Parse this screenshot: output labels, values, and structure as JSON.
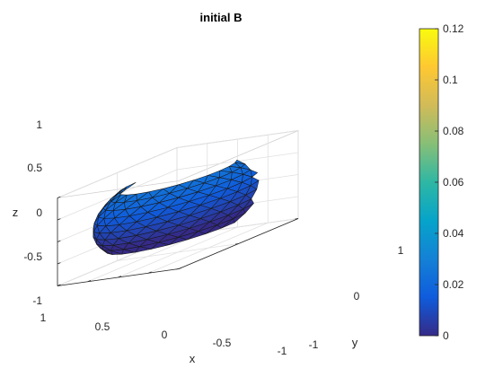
{
  "chart_data": {
    "type": "surface3d",
    "title": "initial B",
    "xlabel": "x",
    "ylabel": "y",
    "zlabel": "z",
    "xlim": [
      -1,
      1
    ],
    "ylim": [
      -1,
      1
    ],
    "zlim": [
      -1,
      1
    ],
    "xticks": [
      "1",
      "0.5",
      "0",
      "-0.5",
      "-1"
    ],
    "yticks": [
      "-1",
      "0",
      "1"
    ],
    "zticks": [
      "1",
      "0.5",
      "0",
      "-0.5",
      "-1"
    ],
    "grid": true,
    "colormap": "parula",
    "colorbar": {
      "location": "right",
      "limits": [
        0,
        0.12
      ],
      "ticks": [
        "0.12",
        "0.1",
        "0.08",
        "0.06",
        "0.04",
        "0.02",
        "0"
      ],
      "colors": [
        "#352a87",
        "#0f5cdd",
        "#1481d6",
        "#06a4ca",
        "#2eb7a4",
        "#87bf77",
        "#d1bb59",
        "#fec832",
        "#f9fb0e"
      ]
    },
    "surface": {
      "shape": "sphere, cap cut off at top and bottom",
      "radius": 1,
      "z_cut_top": 0.72,
      "z_cut_bottom": -0.55,
      "face_color_value_range": [
        0,
        0.025
      ]
    }
  }
}
